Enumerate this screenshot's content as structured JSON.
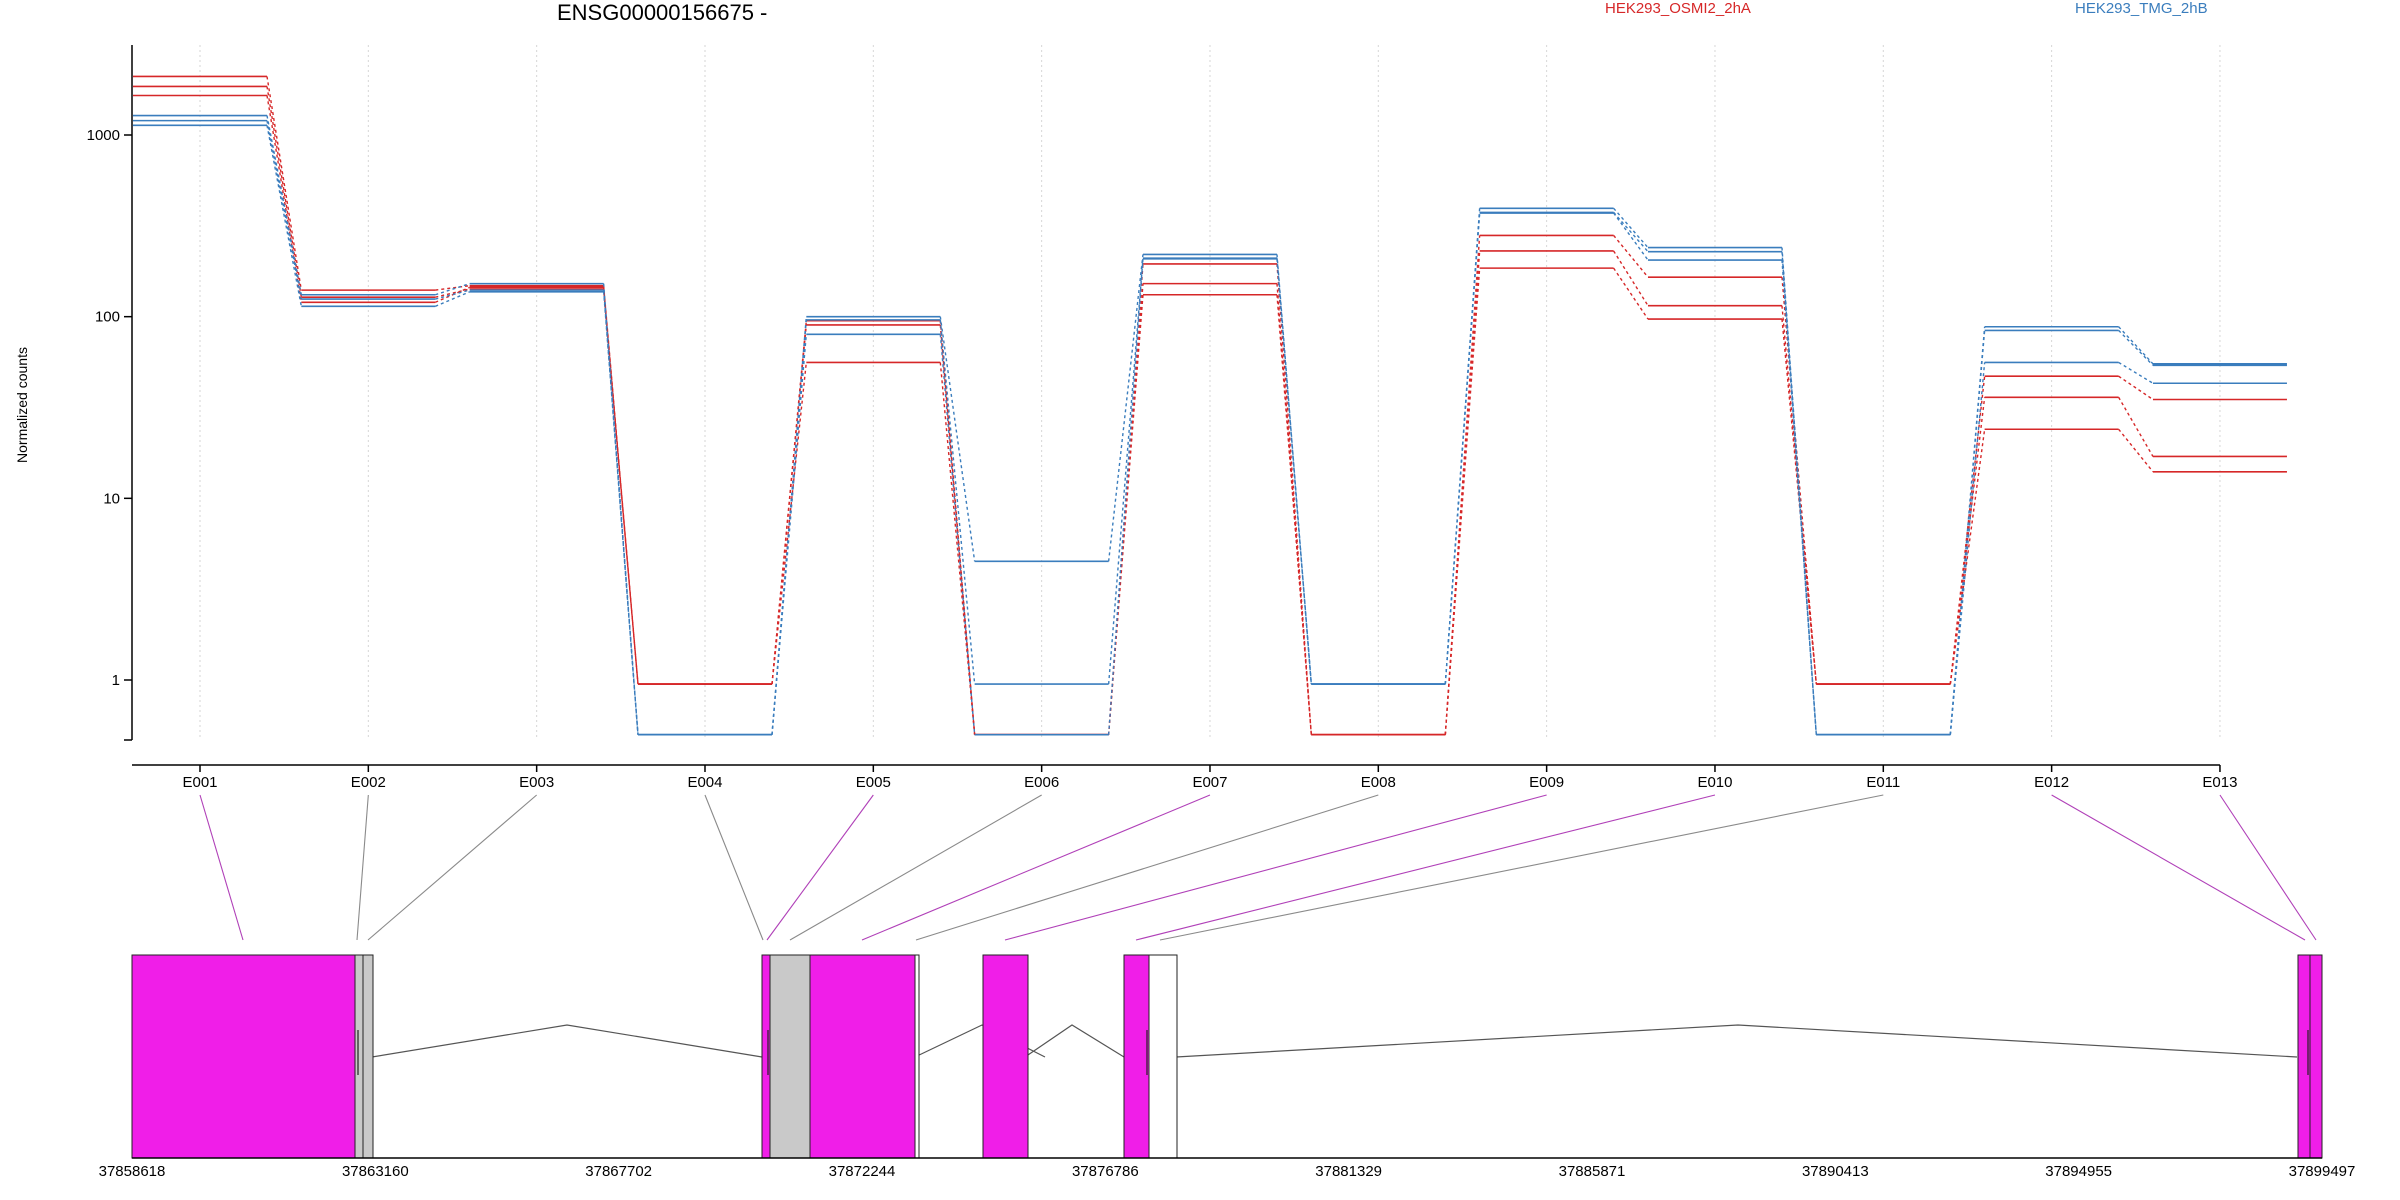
{
  "gene_title": "ENSG00000156675 -",
  "ylabel": "Normalized counts",
  "legend": [
    {
      "label": "HEK293_OSMI2_2hA",
      "color": "#d62728"
    },
    {
      "label": "HEK293_TMG_2hB",
      "color": "#3a7dbd"
    }
  ],
  "chart_data": {
    "type": "line",
    "title": "ENSG00000156675 -",
    "ylabel": "Normalized counts",
    "yscale": "log",
    "ylim": [
      0.5,
      3000
    ],
    "yticks": [
      1,
      10,
      100,
      1000
    ],
    "categories": [
      "E001",
      "E002",
      "E003",
      "E004",
      "E005",
      "E006",
      "E007",
      "E008",
      "E009",
      "E010",
      "E011",
      "E012",
      "E013"
    ],
    "grid": "vertical dotted at exon positions",
    "series": [
      {
        "group": "HEK293_OSMI2_2hA",
        "color": "#d62728",
        "values": [
          2100,
          140,
          148,
          0.95,
          56,
          0.5,
          132,
          0.5,
          185,
          97,
          0.95,
          24,
          14
        ]
      },
      {
        "group": "HEK293_OSMI2_2hA",
        "color": "#d62728",
        "values": [
          1850,
          128,
          142,
          0.95,
          95,
          0.5,
          152,
          0.5,
          230,
          115,
          0.95,
          36,
          17
        ]
      },
      {
        "group": "HEK293_OSMI2_2hA",
        "color": "#d62728",
        "values": [
          1650,
          120,
          145,
          0.95,
          90,
          0.5,
          195,
          0.5,
          280,
          165,
          0.95,
          47,
          35
        ]
      },
      {
        "group": "HEK293_TMG_2hB",
        "color": "#3a7dbd",
        "values": [
          1280,
          132,
          152,
          0.5,
          100,
          4.5,
          220,
          0.95,
          395,
          240,
          0.5,
          88,
          55
        ]
      },
      {
        "group": "HEK293_TMG_2hB",
        "color": "#3a7dbd",
        "values": [
          1200,
          125,
          140,
          0.5,
          96,
          0.95,
          208,
          0.95,
          375,
          228,
          0.5,
          84,
          54
        ]
      },
      {
        "group": "HEK293_TMG_2hB",
        "color": "#3a7dbd",
        "values": [
          1130,
          114,
          137,
          0.5,
          80,
          0.5,
          210,
          0.95,
          372,
          205,
          0.5,
          56,
          43
        ]
      }
    ]
  },
  "gene_model": {
    "axis_ticks": [
      "37858618",
      "37863160",
      "37867702",
      "37872244",
      "37876786",
      "37881329",
      "37885871",
      "37890413",
      "37894955",
      "37899497"
    ],
    "highlight_color": "#f01ee8",
    "neutral_color": "#c9c9c9"
  }
}
